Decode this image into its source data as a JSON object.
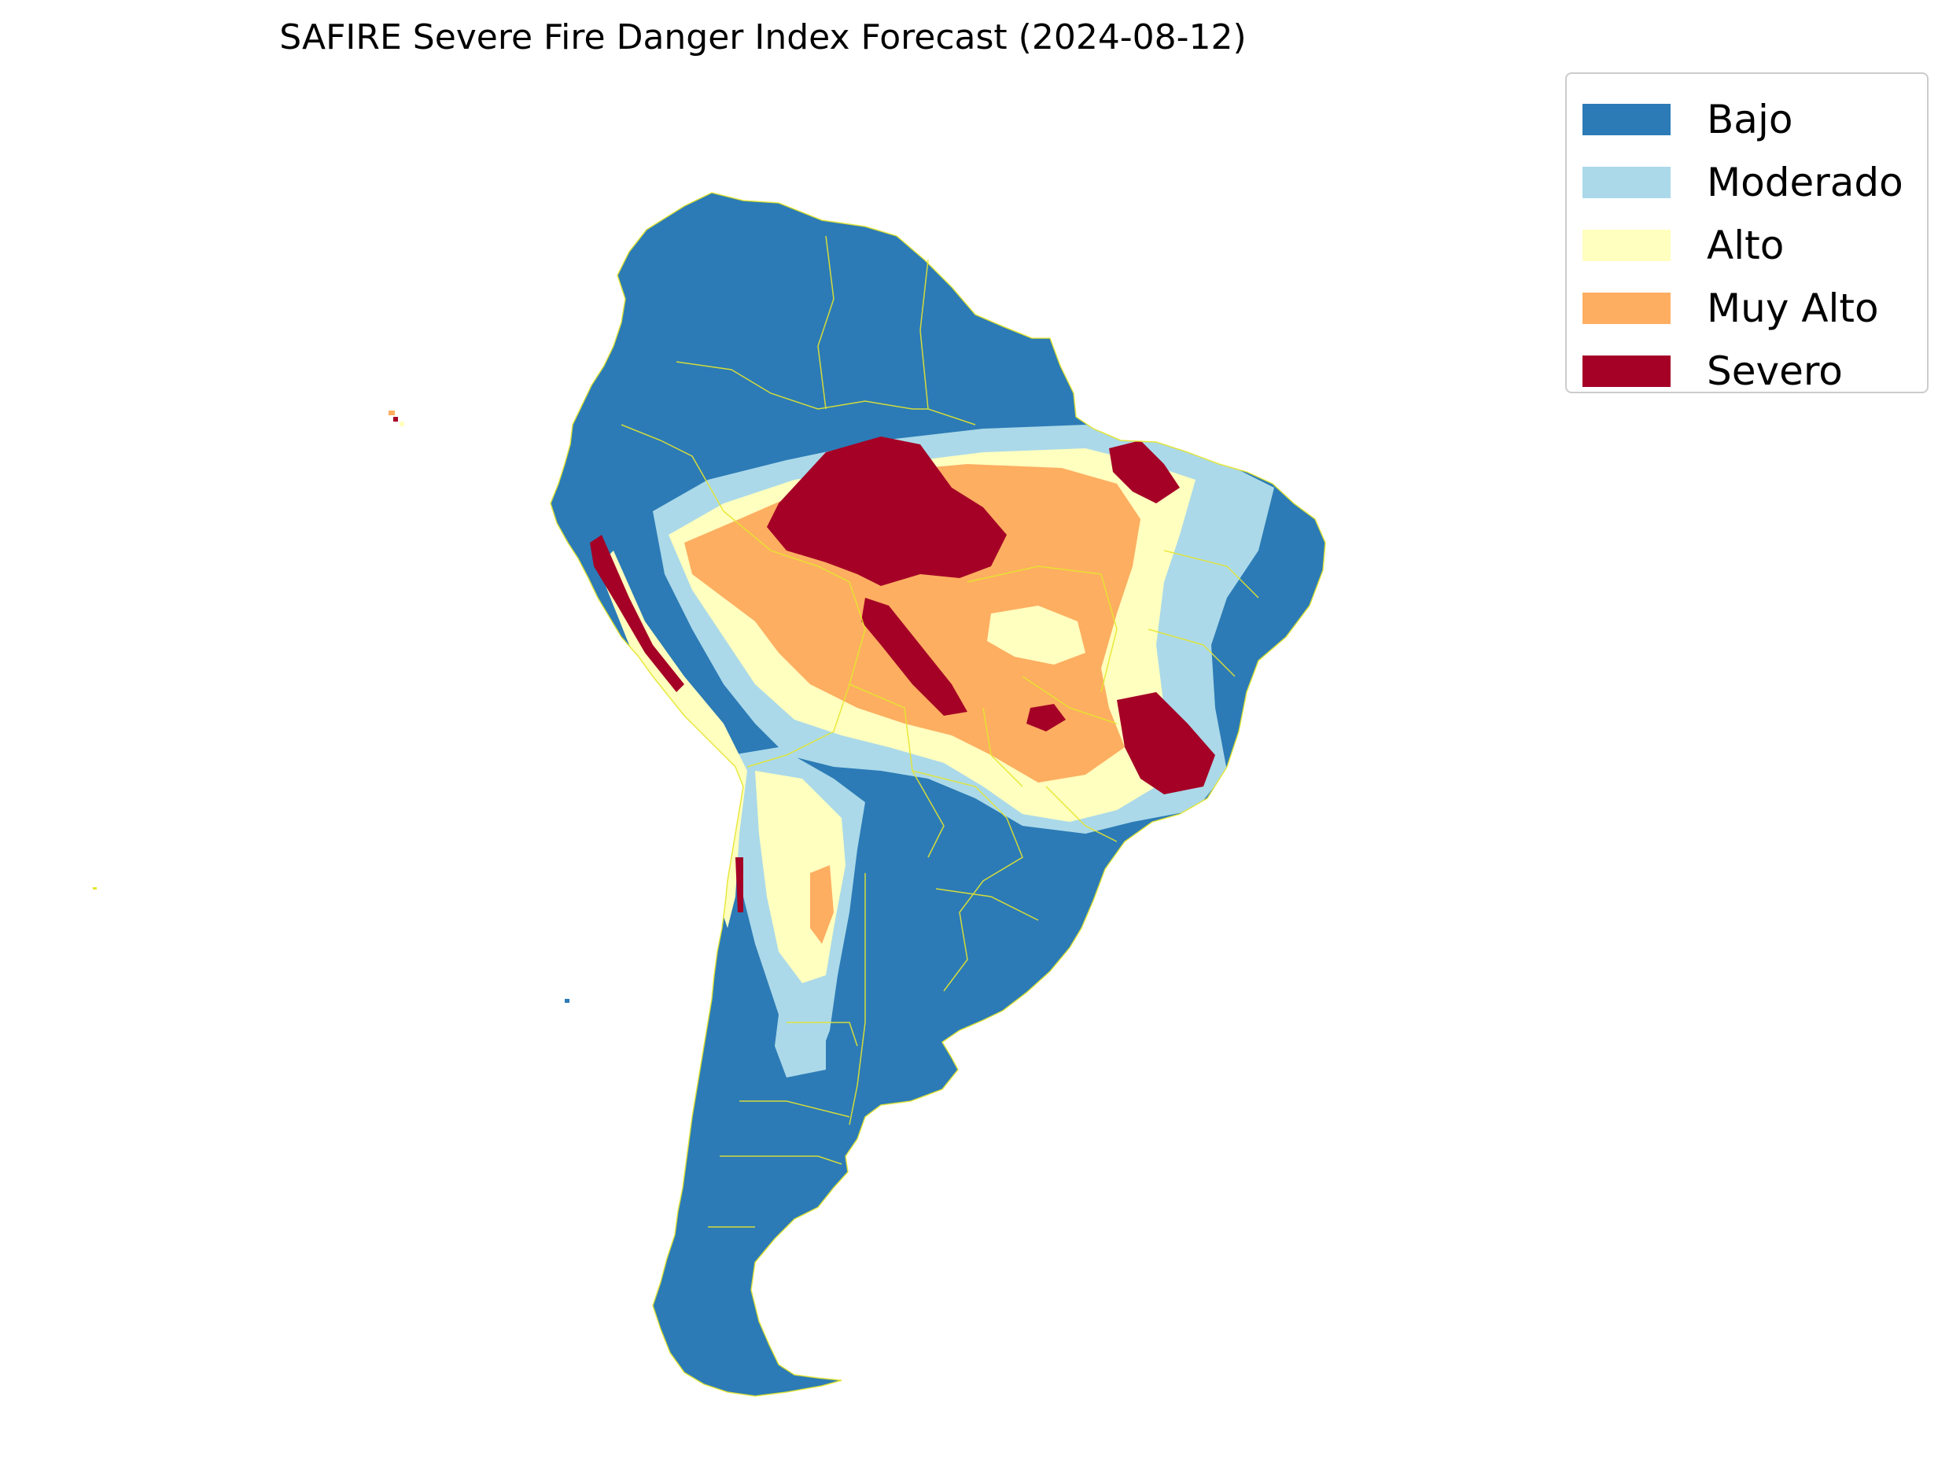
{
  "title": "SAFIRE Severe Fire Danger Index Forecast (2024-08-12)",
  "legend": {
    "items": [
      {
        "label": "Bajo",
        "color": "#2c7bb6"
      },
      {
        "label": "Moderado",
        "color": "#abd9e9"
      },
      {
        "label": "Alto",
        "color": "#ffffbf"
      },
      {
        "label": "Muy Alto",
        "color": "#fdae61"
      },
      {
        "label": "Severo",
        "color": "#a50026"
      }
    ]
  },
  "map": {
    "region": "South America",
    "boundary_color": "#e6e62e"
  }
}
